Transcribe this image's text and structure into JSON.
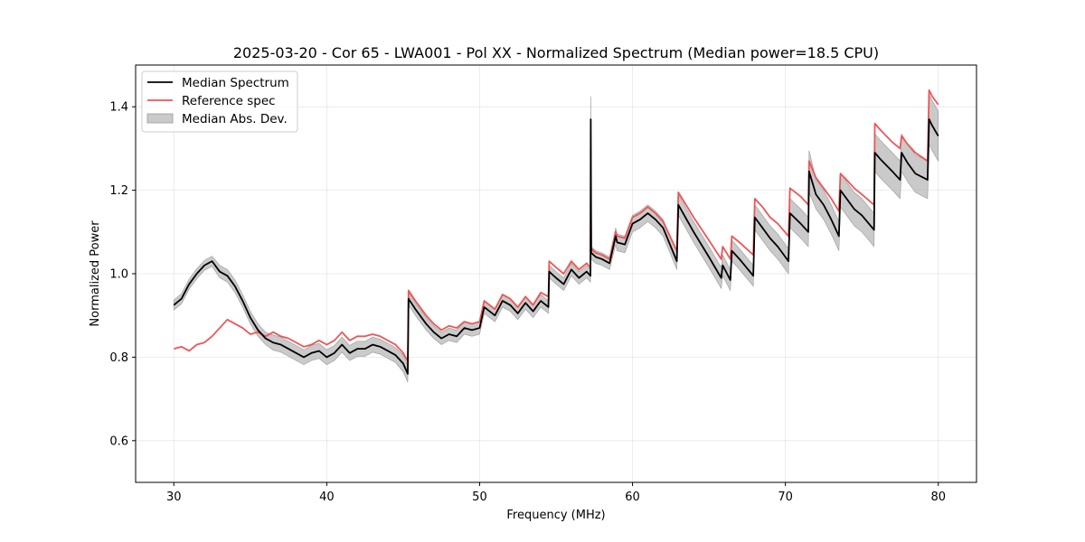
{
  "chart_data": {
    "type": "line",
    "title": "2025-03-20 - Cor 65 - LWA001 - Pol XX - Normalized Spectrum (Median power=18.5 CPU)",
    "xlabel": "Frequency (MHz)",
    "ylabel": "Normalized Power",
    "xlim": [
      27.5,
      82.5
    ],
    "ylim": [
      0.5,
      1.5
    ],
    "xticks": [
      30,
      40,
      50,
      60,
      70,
      80
    ],
    "yticks": [
      0.6,
      0.8,
      1.0,
      1.2,
      1.4
    ],
    "xtick_labels": [
      "30",
      "40",
      "50",
      "60",
      "70",
      "80"
    ],
    "ytick_labels": [
      "0.6",
      "0.8",
      "1.0",
      "1.2",
      "1.4"
    ],
    "grid": true,
    "legend_position": "top-left",
    "legend": [
      "Median Spectrum",
      "Reference spec",
      "Median Abs. Dev."
    ],
    "colors": {
      "median": "#000000",
      "reference": "#ee5555",
      "mad": "#b3b3b3"
    },
    "series": [
      {
        "name": "Median Spectrum",
        "x": [
          30.0,
          30.5,
          31.0,
          31.5,
          32.0,
          32.5,
          33.0,
          33.5,
          34.0,
          34.5,
          35.0,
          35.5,
          36.0,
          36.5,
          37.0,
          37.5,
          38.0,
          38.5,
          39.0,
          39.5,
          40.0,
          40.5,
          41.0,
          41.5,
          42.0,
          42.5,
          43.0,
          43.5,
          44.0,
          44.5,
          45.0,
          45.3,
          45.35,
          45.8,
          46.5,
          47.0,
          47.5,
          48.0,
          48.5,
          49.0,
          49.5,
          50.0,
          50.3,
          51.0,
          51.5,
          52.0,
          52.5,
          53.0,
          53.5,
          54.0,
          54.5,
          54.55,
          55.0,
          55.5,
          56.0,
          56.5,
          57.0,
          57.25,
          57.27,
          57.3,
          57.6,
          58.0,
          58.5,
          58.9,
          59.0,
          59.5,
          60.0,
          60.5,
          61.0,
          61.5,
          62.0,
          62.9,
          63.0,
          64.0,
          65.0,
          65.8,
          65.9,
          66.4,
          66.5,
          67.0,
          67.9,
          68.0,
          68.5,
          69.0,
          69.5,
          70.2,
          70.3,
          71.0,
          71.5,
          71.55,
          72.0,
          72.5,
          73.0,
          73.5,
          73.6,
          74.0,
          74.5,
          75.0,
          75.8,
          75.85,
          76.2,
          77.0,
          77.5,
          77.6,
          78.0,
          78.5,
          79.3,
          79.4,
          79.6,
          80.0
        ],
        "values": [
          0.925,
          0.94,
          0.975,
          1.0,
          1.02,
          1.03,
          1.005,
          0.995,
          0.97,
          0.935,
          0.895,
          0.865,
          0.845,
          0.835,
          0.83,
          0.82,
          0.81,
          0.8,
          0.81,
          0.815,
          0.8,
          0.81,
          0.83,
          0.81,
          0.82,
          0.82,
          0.83,
          0.825,
          0.815,
          0.805,
          0.785,
          0.76,
          0.94,
          0.915,
          0.88,
          0.86,
          0.845,
          0.855,
          0.85,
          0.87,
          0.865,
          0.87,
          0.92,
          0.9,
          0.935,
          0.925,
          0.905,
          0.93,
          0.91,
          0.935,
          0.92,
          1.005,
          0.99,
          0.975,
          1.01,
          0.99,
          1.005,
          0.995,
          1.37,
          1.05,
          1.04,
          1.035,
          1.025,
          1.09,
          1.075,
          1.07,
          1.12,
          1.13,
          1.145,
          1.13,
          1.11,
          1.03,
          1.165,
          1.1,
          1.04,
          0.99,
          1.02,
          0.985,
          1.055,
          1.035,
          0.995,
          1.135,
          1.11,
          1.085,
          1.065,
          1.03,
          1.145,
          1.12,
          1.1,
          1.245,
          1.19,
          1.165,
          1.13,
          1.09,
          1.2,
          1.18,
          1.155,
          1.14,
          1.105,
          1.29,
          1.275,
          1.245,
          1.225,
          1.29,
          1.265,
          1.24,
          1.225,
          1.37,
          1.355,
          1.33
        ]
      },
      {
        "name": "Reference spec",
        "x": [
          30.0,
          30.5,
          31.0,
          31.5,
          32.0,
          32.5,
          33.0,
          33.5,
          34.0,
          34.5,
          35.0,
          35.5,
          36.0,
          36.5,
          37.0,
          37.5,
          38.0,
          38.5,
          39.0,
          39.5,
          40.0,
          40.5,
          41.0,
          41.5,
          42.0,
          42.5,
          43.0,
          43.5,
          44.0,
          44.5,
          45.0,
          45.3,
          45.35,
          45.8,
          46.5,
          47.0,
          47.5,
          48.0,
          48.5,
          49.0,
          49.5,
          50.0,
          50.3,
          51.0,
          51.5,
          52.0,
          52.5,
          53.0,
          53.5,
          54.0,
          54.5,
          54.55,
          55.0,
          55.5,
          56.0,
          56.5,
          57.0,
          57.25,
          57.27,
          57.3,
          57.6,
          58.0,
          58.5,
          58.9,
          59.0,
          59.5,
          60.0,
          60.5,
          61.0,
          61.5,
          62.0,
          62.9,
          63.0,
          64.0,
          65.0,
          65.8,
          65.9,
          66.4,
          66.5,
          67.0,
          67.9,
          68.0,
          68.5,
          69.0,
          69.5,
          70.2,
          70.3,
          71.0,
          71.5,
          71.55,
          72.0,
          72.5,
          73.0,
          73.5,
          73.6,
          74.0,
          74.5,
          75.0,
          75.8,
          75.85,
          76.2,
          77.0,
          77.5,
          77.6,
          78.0,
          78.5,
          79.3,
          79.4,
          79.6,
          80.0
        ],
        "values": [
          0.82,
          0.825,
          0.815,
          0.83,
          0.835,
          0.85,
          0.87,
          0.89,
          0.88,
          0.87,
          0.855,
          0.86,
          0.85,
          0.86,
          0.85,
          0.845,
          0.835,
          0.825,
          0.83,
          0.84,
          0.83,
          0.84,
          0.86,
          0.84,
          0.85,
          0.85,
          0.855,
          0.85,
          0.84,
          0.83,
          0.81,
          0.79,
          0.96,
          0.935,
          0.9,
          0.88,
          0.865,
          0.875,
          0.87,
          0.885,
          0.88,
          0.885,
          0.935,
          0.915,
          0.95,
          0.94,
          0.92,
          0.945,
          0.925,
          0.955,
          0.945,
          1.03,
          1.015,
          1.0,
          1.03,
          1.01,
          1.025,
          1.015,
          1.21,
          1.06,
          1.05,
          1.045,
          1.035,
          1.1,
          1.09,
          1.085,
          1.135,
          1.145,
          1.16,
          1.145,
          1.125,
          1.055,
          1.195,
          1.135,
          1.08,
          1.035,
          1.065,
          1.035,
          1.09,
          1.075,
          1.045,
          1.18,
          1.16,
          1.135,
          1.12,
          1.09,
          1.205,
          1.185,
          1.165,
          1.27,
          1.23,
          1.205,
          1.18,
          1.15,
          1.24,
          1.225,
          1.205,
          1.19,
          1.165,
          1.36,
          1.345,
          1.315,
          1.3,
          1.33,
          1.31,
          1.29,
          1.27,
          1.44,
          1.425,
          1.405
        ]
      }
    ],
    "mad_halfwidth": [
      0.012,
      0.012,
      0.012,
      0.012,
      0.012,
      0.012,
      0.015,
      0.015,
      0.015,
      0.015,
      0.015,
      0.015,
      0.015,
      0.018,
      0.018,
      0.018,
      0.018,
      0.018,
      0.018,
      0.018,
      0.018,
      0.018,
      0.018,
      0.018,
      0.018,
      0.018,
      0.018,
      0.018,
      0.018,
      0.018,
      0.02,
      0.02,
      0.015,
      0.015,
      0.015,
      0.015,
      0.015,
      0.015,
      0.015,
      0.015,
      0.015,
      0.015,
      0.015,
      0.015,
      0.015,
      0.015,
      0.015,
      0.015,
      0.015,
      0.015,
      0.015,
      0.015,
      0.015,
      0.015,
      0.015,
      0.015,
      0.015,
      0.015,
      0.055,
      0.015,
      0.015,
      0.015,
      0.015,
      0.02,
      0.02,
      0.02,
      0.02,
      0.02,
      0.02,
      0.02,
      0.02,
      0.02,
      0.025,
      0.025,
      0.025,
      0.025,
      0.025,
      0.025,
      0.025,
      0.025,
      0.025,
      0.03,
      0.03,
      0.03,
      0.03,
      0.03,
      0.035,
      0.035,
      0.035,
      0.05,
      0.035,
      0.035,
      0.035,
      0.035,
      0.04,
      0.04,
      0.04,
      0.04,
      0.04,
      0.045,
      0.045,
      0.045,
      0.045,
      0.045,
      0.045,
      0.045,
      0.045,
      0.06,
      0.06,
      0.06
    ]
  }
}
